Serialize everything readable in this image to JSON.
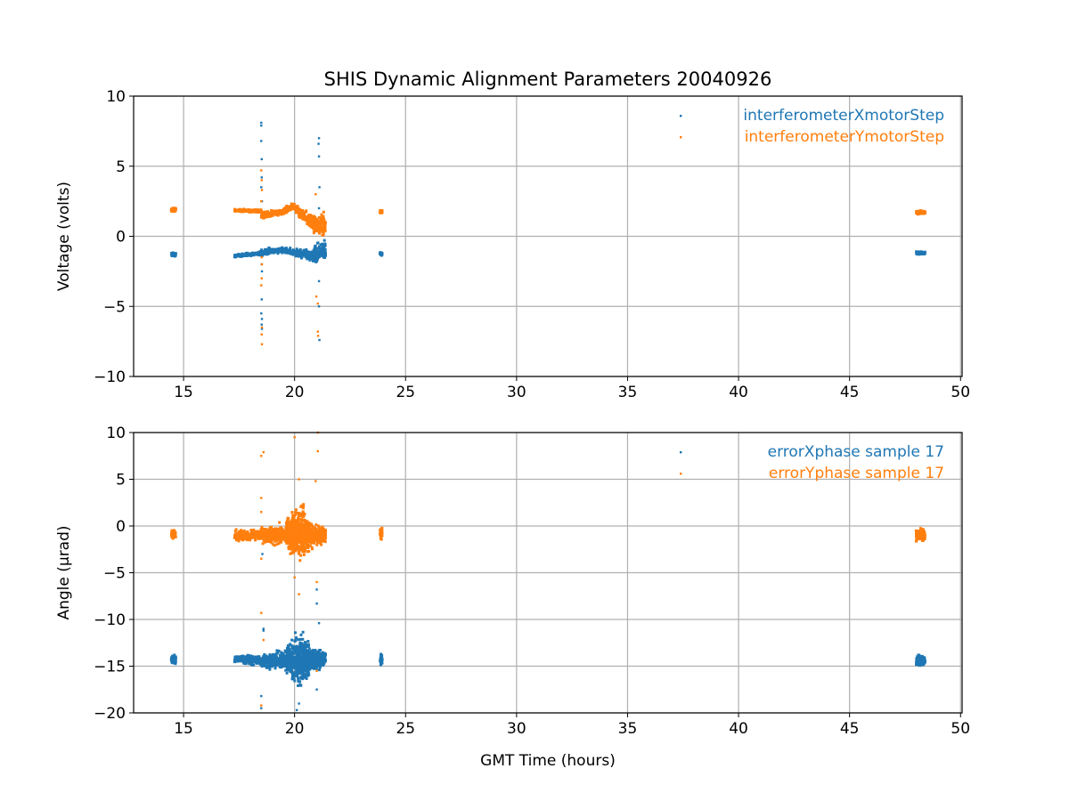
{
  "chart_data": [
    {
      "type": "scatter",
      "title": "SHIS Dynamic Alignment Parameters 20040926",
      "xlabel": "",
      "ylabel": "Voltage (volts)",
      "xlim": [
        12.75,
        50.07
      ],
      "ylim": [
        -10,
        10
      ],
      "xticks": [
        15,
        20,
        25,
        30,
        35,
        40,
        45,
        50
      ],
      "yticks": [
        -10,
        -5,
        0,
        5,
        10
      ],
      "xtick_labels": [
        "15",
        "20",
        "25",
        "30",
        "35",
        "40",
        "45",
        "50"
      ],
      "ytick_labels": [
        "−10",
        "−5",
        "0",
        "5",
        "10"
      ],
      "grid": true,
      "legend_position": "top-right",
      "series": [
        {
          "name": "interferometerXmotorStep",
          "color": "#1f77b4",
          "clusters": [
            {
              "x": [
                14.45,
                14.65
              ],
              "y": [
                -1.3,
                -1.3
              ],
              "sd": [
                0.08,
                0.08
              ],
              "n": 60
            },
            {
              "x": [
                17.3,
                18.5
              ],
              "y": [
                -1.4,
                -1.2
              ],
              "sd": [
                0.06,
                0.08
              ],
              "n": 160
            },
            {
              "x": [
                18.5,
                19.5
              ],
              "y": [
                -1.15,
                -0.95
              ],
              "sd": [
                0.15,
                0.12
              ],
              "n": 140
            },
            {
              "x": [
                19.5,
                20.8
              ],
              "y": [
                -1.0,
                -1.4
              ],
              "sd": [
                0.12,
                0.25
              ],
              "n": 180
            },
            {
              "x": [
                20.8,
                21.4
              ],
              "y": [
                -1.4,
                -0.9
              ],
              "sd": [
                0.35,
                0.5
              ],
              "n": 120
            },
            {
              "x": [
                23.85,
                23.95
              ],
              "y": [
                -1.25,
                -1.25
              ],
              "sd": [
                0.07,
                0.07
              ],
              "n": 30
            },
            {
              "x": [
                48.0,
                48.4
              ],
              "y": [
                -1.2,
                -1.2
              ],
              "sd": [
                0.06,
                0.06
              ],
              "n": 80
            }
          ],
          "outliers": [
            [
              18.5,
              8.1
            ],
            [
              18.5,
              7.9
            ],
            [
              18.5,
              6.8
            ],
            [
              18.52,
              5.5
            ],
            [
              18.52,
              4.2
            ],
            [
              18.5,
              3.5
            ],
            [
              18.53,
              2.5
            ],
            [
              18.5,
              1.5
            ],
            [
              18.52,
              -2.0
            ],
            [
              18.53,
              -2.5
            ],
            [
              18.52,
              -4.5
            ],
            [
              18.5,
              -5.5
            ],
            [
              18.53,
              -5.9
            ],
            [
              18.52,
              -6.3
            ],
            [
              18.53,
              -6.6
            ],
            [
              21.1,
              7.0
            ],
            [
              21.08,
              6.6
            ],
            [
              21.1,
              5.7
            ],
            [
              21.12,
              3.5
            ],
            [
              21.1,
              2.0
            ],
            [
              21.1,
              0.5
            ],
            [
              21.1,
              -3.2
            ],
            [
              21.1,
              -5.0
            ],
            [
              21.12,
              -7.4
            ]
          ]
        },
        {
          "name": "interferometerYmotorStep",
          "color": "#ff7f0e",
          "clusters": [
            {
              "x": [
                14.45,
                14.65
              ],
              "y": [
                1.9,
                1.9
              ],
              "sd": [
                0.08,
                0.08
              ],
              "n": 60
            },
            {
              "x": [
                17.3,
                18.5
              ],
              "y": [
                1.85,
                1.8
              ],
              "sd": [
                0.06,
                0.08
              ],
              "n": 160
            },
            {
              "x": [
                18.5,
                19.5
              ],
              "y": [
                1.5,
                1.75
              ],
              "sd": [
                0.18,
                0.12
              ],
              "n": 140
            },
            {
              "x": [
                19.5,
                20.0
              ],
              "y": [
                1.8,
                2.2
              ],
              "sd": [
                0.12,
                0.12
              ],
              "n": 80
            },
            {
              "x": [
                20.0,
                20.8
              ],
              "y": [
                2.0,
                1.0
              ],
              "sd": [
                0.15,
                0.35
              ],
              "n": 140
            },
            {
              "x": [
                20.8,
                21.4
              ],
              "y": [
                0.8,
                0.9
              ],
              "sd": [
                0.45,
                0.5
              ],
              "n": 140
            },
            {
              "x": [
                23.85,
                23.95
              ],
              "y": [
                1.75,
                1.75
              ],
              "sd": [
                0.08,
                0.08
              ],
              "n": 30
            },
            {
              "x": [
                48.0,
                48.4
              ],
              "y": [
                1.7,
                1.7
              ],
              "sd": [
                0.07,
                0.07
              ],
              "n": 80
            }
          ],
          "outliers": [
            [
              18.5,
              4.7
            ],
            [
              18.52,
              4.0
            ],
            [
              18.53,
              3.3
            ],
            [
              18.5,
              2.5
            ],
            [
              18.52,
              -1.5
            ],
            [
              18.53,
              -2.0
            ],
            [
              18.52,
              -3.0
            ],
            [
              18.5,
              -3.5
            ],
            [
              18.53,
              -6.5
            ],
            [
              18.52,
              -7.0
            ],
            [
              18.53,
              -7.7
            ],
            [
              20.95,
              3.0
            ],
            [
              21.05,
              1.0
            ],
            [
              20.98,
              -4.3
            ],
            [
              21.05,
              -4.8
            ],
            [
              21.05,
              -6.8
            ],
            [
              21.06,
              -7.1
            ]
          ]
        }
      ]
    },
    {
      "type": "scatter",
      "title": "",
      "xlabel": "GMT Time (hours)",
      "ylabel": "Angle (μrad)",
      "xlim": [
        12.75,
        50.07
      ],
      "ylim": [
        -20,
        10
      ],
      "xticks": [
        15,
        20,
        25,
        30,
        35,
        40,
        45,
        50
      ],
      "yticks": [
        -20,
        -15,
        -10,
        -5,
        0,
        5,
        10
      ],
      "xtick_labels": [
        "15",
        "20",
        "25",
        "30",
        "35",
        "40",
        "45",
        "50"
      ],
      "ytick_labels": [
        "−20",
        "−15",
        "−10",
        "−5",
        "0",
        "5",
        "10"
      ],
      "grid": true,
      "legend_position": "top-right",
      "series": [
        {
          "name": "errorXphase sample 17",
          "color": "#1f77b4",
          "clusters": [
            {
              "x": [
                14.45,
                14.65
              ],
              "y": [
                -14.3,
                -14.3
              ],
              "sd": [
                0.25,
                0.25
              ],
              "n": 70
            },
            {
              "x": [
                17.3,
                18.5
              ],
              "y": [
                -14.2,
                -14.4
              ],
              "sd": [
                0.25,
                0.35
              ],
              "n": 220
            },
            {
              "x": [
                18.5,
                19.6
              ],
              "y": [
                -14.5,
                -14.3
              ],
              "sd": [
                0.45,
                0.6
              ],
              "n": 260
            },
            {
              "x": [
                19.6,
                20.2
              ],
              "y": [
                -14.3,
                -14.5
              ],
              "sd": [
                0.8,
                1.8
              ],
              "n": 320
            },
            {
              "x": [
                20.2,
                20.7
              ],
              "y": [
                -14.5,
                -14.3
              ],
              "sd": [
                1.8,
                0.9
              ],
              "n": 320
            },
            {
              "x": [
                20.7,
                21.4
              ],
              "y": [
                -14.3,
                -14.2
              ],
              "sd": [
                0.8,
                0.5
              ],
              "n": 240
            },
            {
              "x": [
                23.85,
                23.95
              ],
              "y": [
                -14.3,
                -14.3
              ],
              "sd": [
                0.35,
                0.35
              ],
              "n": 40
            },
            {
              "x": [
                48.0,
                48.4
              ],
              "y": [
                -14.4,
                -14.4
              ],
              "sd": [
                0.35,
                0.35
              ],
              "n": 100
            }
          ],
          "outliers": [
            [
              18.55,
              -3.0
            ],
            [
              18.6,
              -11.0
            ],
            [
              18.6,
              -11.2
            ],
            [
              18.5,
              -18.2
            ],
            [
              18.5,
              -19.5
            ],
            [
              20.1,
              -19.7
            ],
            [
              20.2,
              -19.0
            ],
            [
              21.0,
              -1.5
            ],
            [
              21.0,
              -6.8
            ],
            [
              21.0,
              -8.3
            ],
            [
              21.1,
              -10.4
            ],
            [
              21.0,
              -17.5
            ]
          ]
        },
        {
          "name": "errorYphase sample 17",
          "color": "#ff7f0e",
          "clusters": [
            {
              "x": [
                14.45,
                14.65
              ],
              "y": [
                -0.9,
                -0.9
              ],
              "sd": [
                0.3,
                0.3
              ],
              "n": 70
            },
            {
              "x": [
                17.3,
                18.5
              ],
              "y": [
                -1.0,
                -1.0
              ],
              "sd": [
                0.3,
                0.4
              ],
              "n": 220
            },
            {
              "x": [
                18.5,
                19.6
              ],
              "y": [
                -1.0,
                -1.0
              ],
              "sd": [
                0.5,
                0.7
              ],
              "n": 260
            },
            {
              "x": [
                19.6,
                20.2
              ],
              "y": [
                -0.9,
                -0.6
              ],
              "sd": [
                0.9,
                1.9
              ],
              "n": 320
            },
            {
              "x": [
                20.2,
                20.7
              ],
              "y": [
                -0.6,
                -0.9
              ],
              "sd": [
                1.9,
                1.0
              ],
              "n": 320
            },
            {
              "x": [
                20.7,
                21.4
              ],
              "y": [
                -0.9,
                -1.0
              ],
              "sd": [
                0.9,
                0.5
              ],
              "n": 240
            },
            {
              "x": [
                23.85,
                23.95
              ],
              "y": [
                -0.8,
                -0.8
              ],
              "sd": [
                0.4,
                0.4
              ],
              "n": 40
            },
            {
              "x": [
                48.0,
                48.4
              ],
              "y": [
                -1.0,
                -1.0
              ],
              "sd": [
                0.4,
                0.4
              ],
              "n": 100
            }
          ],
          "outliers": [
            [
              18.6,
              7.9
            ],
            [
              18.5,
              7.5
            ],
            [
              18.5,
              3.0
            ],
            [
              18.5,
              1.5
            ],
            [
              18.5,
              -3.5
            ],
            [
              18.6,
              -12.2
            ],
            [
              18.5,
              -9.3
            ],
            [
              18.5,
              -19.2
            ],
            [
              20.0,
              9.5
            ],
            [
              20.2,
              5.0
            ],
            [
              20.0,
              -5.5
            ],
            [
              20.2,
              -7.3
            ],
            [
              21.05,
              10.0
            ],
            [
              21.05,
              8.0
            ],
            [
              20.95,
              4.8
            ],
            [
              21.0,
              -6.0
            ],
            [
              21.0,
              -15.5
            ]
          ]
        }
      ]
    }
  ]
}
